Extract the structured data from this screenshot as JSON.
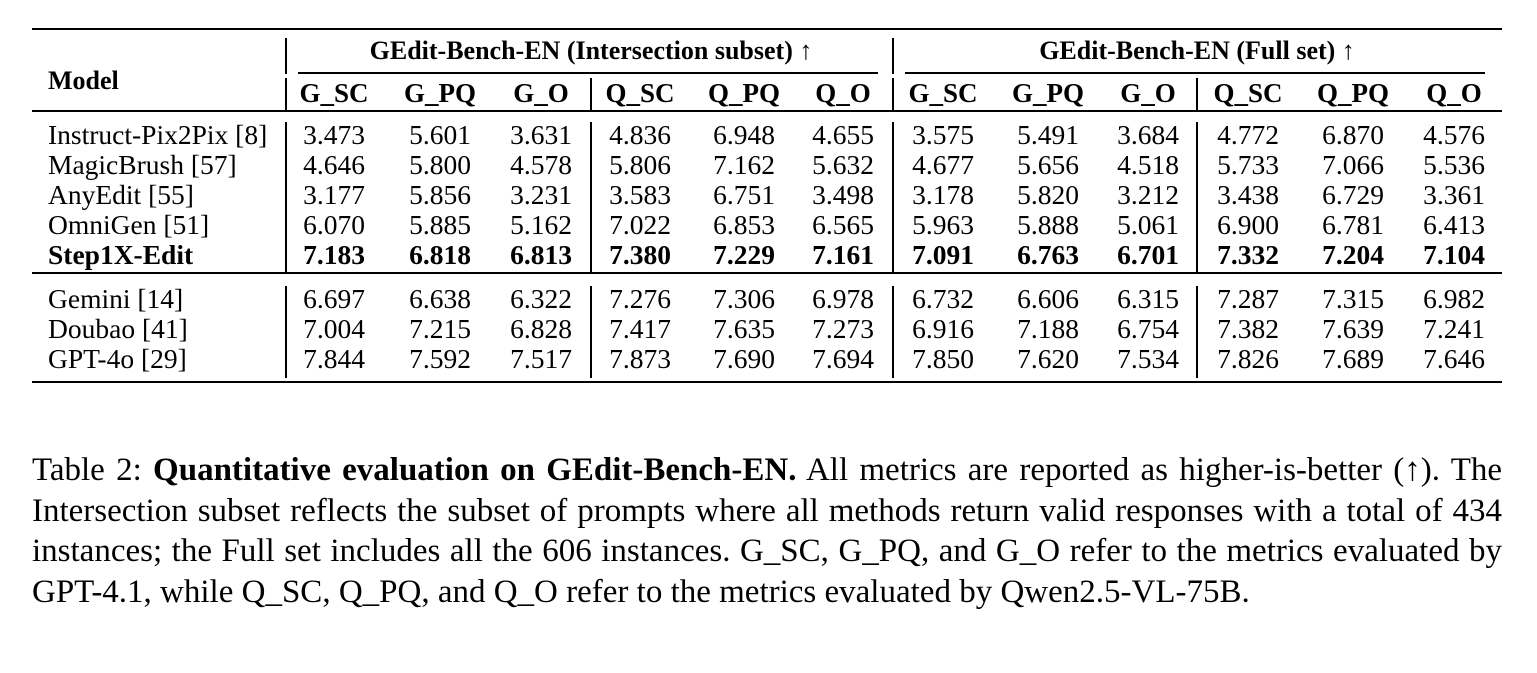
{
  "table": {
    "model_header": "Model",
    "groups": [
      {
        "title": "GEdit-Bench-EN (Intersection subset) ↑"
      },
      {
        "title": "GEdit-Bench-EN (Full set) ↑"
      }
    ],
    "columns": [
      "G_SC",
      "G_PQ",
      "G_O",
      "Q_SC",
      "Q_PQ",
      "Q_O",
      "G_SC",
      "G_PQ",
      "G_O",
      "Q_SC",
      "Q_PQ",
      "Q_O"
    ],
    "rows": [
      {
        "model": "Instruct-Pix2Pix [8]",
        "bold": false,
        "values": [
          "3.473",
          "5.601",
          "3.631",
          "4.836",
          "6.948",
          "4.655",
          "3.575",
          "5.491",
          "3.684",
          "4.772",
          "6.870",
          "4.576"
        ]
      },
      {
        "model": "MagicBrush [57]",
        "bold": false,
        "values": [
          "4.646",
          "5.800",
          "4.578",
          "5.806",
          "7.162",
          "5.632",
          "4.677",
          "5.656",
          "4.518",
          "5.733",
          "7.066",
          "5.536"
        ]
      },
      {
        "model": "AnyEdit [55]",
        "bold": false,
        "values": [
          "3.177",
          "5.856",
          "3.231",
          "3.583",
          "6.751",
          "3.498",
          "3.178",
          "5.820",
          "3.212",
          "3.438",
          "6.729",
          "3.361"
        ]
      },
      {
        "model": "OmniGen [51]",
        "bold": false,
        "values": [
          "6.070",
          "5.885",
          "5.162",
          "7.022",
          "6.853",
          "6.565",
          "5.963",
          "5.888",
          "5.061",
          "6.900",
          "6.781",
          "6.413"
        ]
      },
      {
        "model": "Step1X-Edit",
        "bold": true,
        "values": [
          "7.183",
          "6.818",
          "6.813",
          "7.380",
          "7.229",
          "7.161",
          "7.091",
          "6.763",
          "6.701",
          "7.332",
          "7.204",
          "7.104"
        ]
      },
      {
        "model": "Gemini [14]",
        "bold": false,
        "values": [
          "6.697",
          "6.638",
          "6.322",
          "7.276",
          "7.306",
          "6.978",
          "6.732",
          "6.606",
          "6.315",
          "7.287",
          "7.315",
          "6.982"
        ]
      },
      {
        "model": "Doubao [41]",
        "bold": false,
        "values": [
          "7.004",
          "7.215",
          "6.828",
          "7.417",
          "7.635",
          "7.273",
          "6.916",
          "7.188",
          "6.754",
          "7.382",
          "7.639",
          "7.241"
        ]
      },
      {
        "model": "GPT-4o [29]",
        "bold": false,
        "values": [
          "7.844",
          "7.592",
          "7.517",
          "7.873",
          "7.690",
          "7.694",
          "7.850",
          "7.620",
          "7.534",
          "7.826",
          "7.689",
          "7.646"
        ]
      }
    ]
  },
  "caption": {
    "label": "Table 2:",
    "title": "Quantitative evaluation on GEdit-Bench-EN.",
    "body": "All metrics are reported as higher-is-better (↑). The Intersection subset reflects the subset of prompts where all methods return valid responses with a total of 434 instances; the Full set includes all the 606 instances. G_SC, G_PQ, and G_O refer to the metrics evaluated by GPT-4.1, while Q_SC, Q_PQ, and Q_O refer to the metrics evaluated by Qwen2.5-VL-75B."
  }
}
